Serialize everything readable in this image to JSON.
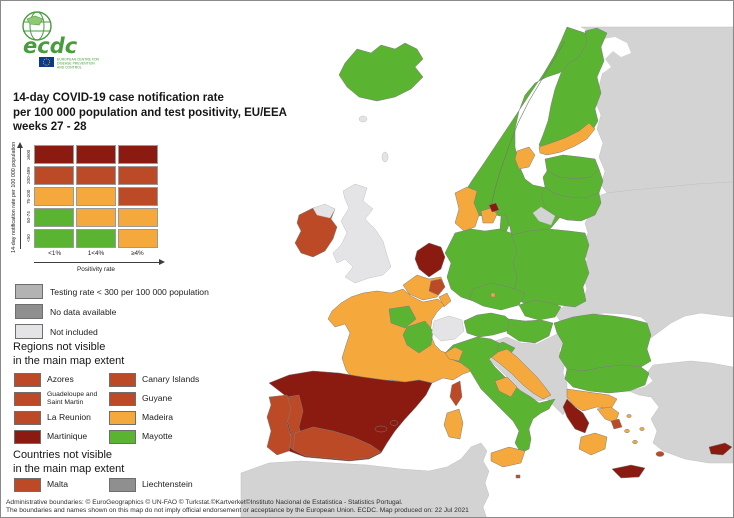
{
  "logo": {
    "brand": "ecdc",
    "org_lines": [
      "EUROPEAN CENTRE FOR",
      "DISEASE PREVENTION",
      "AND CONTROL"
    ]
  },
  "title_lines": [
    "14-day COVID-19 case notification rate",
    "per 100 000 population and test positivity, EU/EEA",
    "weeks 27 - 28"
  ],
  "colors": {
    "green": "#5BB431",
    "orange": "#F5A83C",
    "red": "#BD4A26",
    "dark_red": "#8B1B10",
    "testing_low": "#B3B3B3",
    "no_data": "#8F8F8F",
    "not_included": "#E4E4E6",
    "non_eu": "#D3D3D3",
    "sea": "#FFFFFF"
  },
  "matrix_legend": {
    "y_axis_label": "14-day notification rate per 100 000 population",
    "x_axis_label": "Positivity rate",
    "row_labels": [
      "≥500",
      "200-499",
      "75-200",
      "50-74",
      "<50"
    ],
    "col_labels": [
      "<1%",
      "1<4%",
      "≥4%"
    ],
    "cells": [
      [
        "dark_red",
        "dark_red",
        "dark_red"
      ],
      [
        "red",
        "red",
        "red"
      ],
      [
        "orange",
        "orange",
        "red"
      ],
      [
        "green",
        "orange",
        "orange"
      ],
      [
        "green",
        "green",
        "orange"
      ]
    ]
  },
  "status_legend": {
    "items": [
      {
        "label": "Testing rate < 300 per 100 000 population",
        "color_key": "testing_low"
      },
      {
        "label": "No data available",
        "color_key": "no_data"
      },
      {
        "label": "Not included",
        "color_key": "not_included"
      }
    ]
  },
  "regions_not_visible": {
    "heading_lines": [
      "Regions not visible",
      "in the main map extent"
    ],
    "items": [
      {
        "label": "Azores",
        "color_key": "red"
      },
      {
        "label": "Canary Islands",
        "color_key": "red"
      },
      {
        "label": "Guadeloupe and Saint Martin",
        "color_key": "red"
      },
      {
        "label": "Guyane",
        "color_key": "red"
      },
      {
        "label": "La Reunion",
        "color_key": "red"
      },
      {
        "label": "Madeira",
        "color_key": "orange"
      },
      {
        "label": "Martinique",
        "color_key": "dark_red"
      },
      {
        "label": "Mayotte",
        "color_key": "green"
      }
    ]
  },
  "countries_not_visible": {
    "heading_lines": [
      "Countries not visible",
      "in the main map extent"
    ],
    "items": [
      {
        "label": "Malta",
        "color_key": "red"
      },
      {
        "label": "Liechtenstein",
        "color_key": "no_data"
      }
    ]
  },
  "footer_lines": [
    "Administrative boundaries: © EuroGeographics © UN-FAO © Turkstat.©Kartverket©Instituto Nacional de Estatistica - Statistics Portugal.",
    "The boundaries and names shown on this map do not imply official endorsement or acceptance by the European Union. ECDC. Map produced on: 22 Jul 2021"
  ],
  "map": {
    "regions": {
      "iceland": "green",
      "scandinavia": "green",
      "sweden_east_coast": "orange",
      "gotland": "green",
      "finland": "green",
      "finland_south": "orange",
      "estonia": "green",
      "latvia": "green",
      "lithuania": "green",
      "denmark": "orange",
      "denmark_islands": "orange",
      "denmark_capital": "dark_red",
      "germany": "green",
      "poland": "green",
      "netherlands": "dark_red",
      "belgium": "orange",
      "belgium_east": "red",
      "luxembourg": "orange",
      "france": "orange",
      "france_region_1": "green",
      "france_region_2": "green",
      "spain": "dark_red",
      "spain_west": "red",
      "spain_south": "red",
      "balearic_islands": "dark_red",
      "portugal": "red",
      "ireland": "red",
      "italy": "green",
      "italy_northwest": "orange",
      "italy_central": "orange",
      "sicily": "orange",
      "sardinia": "orange",
      "corsica": "red",
      "austria": "green",
      "czechia": "green",
      "prague": "orange",
      "slovakia": "green",
      "hungary": "green",
      "slovenia": "green",
      "croatia_coast": "orange",
      "croatia_inland": "green",
      "romania": "green",
      "bulgaria": "green",
      "greece_north": "orange",
      "greece_west": "dark_red",
      "greece_east": "orange",
      "attica": "red",
      "peloponnese": "orange",
      "crete": "dark_red",
      "rhodes": "red",
      "aegean_islands": "orange",
      "cyprus": "dark_red",
      "malta": "red",
      "uk": "not_included",
      "northern_ireland": "not_included",
      "switzerland": "not_included",
      "faroe_islands": "not_included",
      "shetland": "not_included",
      "kaliningrad": "non_eu",
      "russia": "non_eu",
      "belarus_ukraine": "non_eu",
      "western_balkans": "non_eu",
      "turkey": "non_eu",
      "north_africa": "non_eu"
    }
  }
}
